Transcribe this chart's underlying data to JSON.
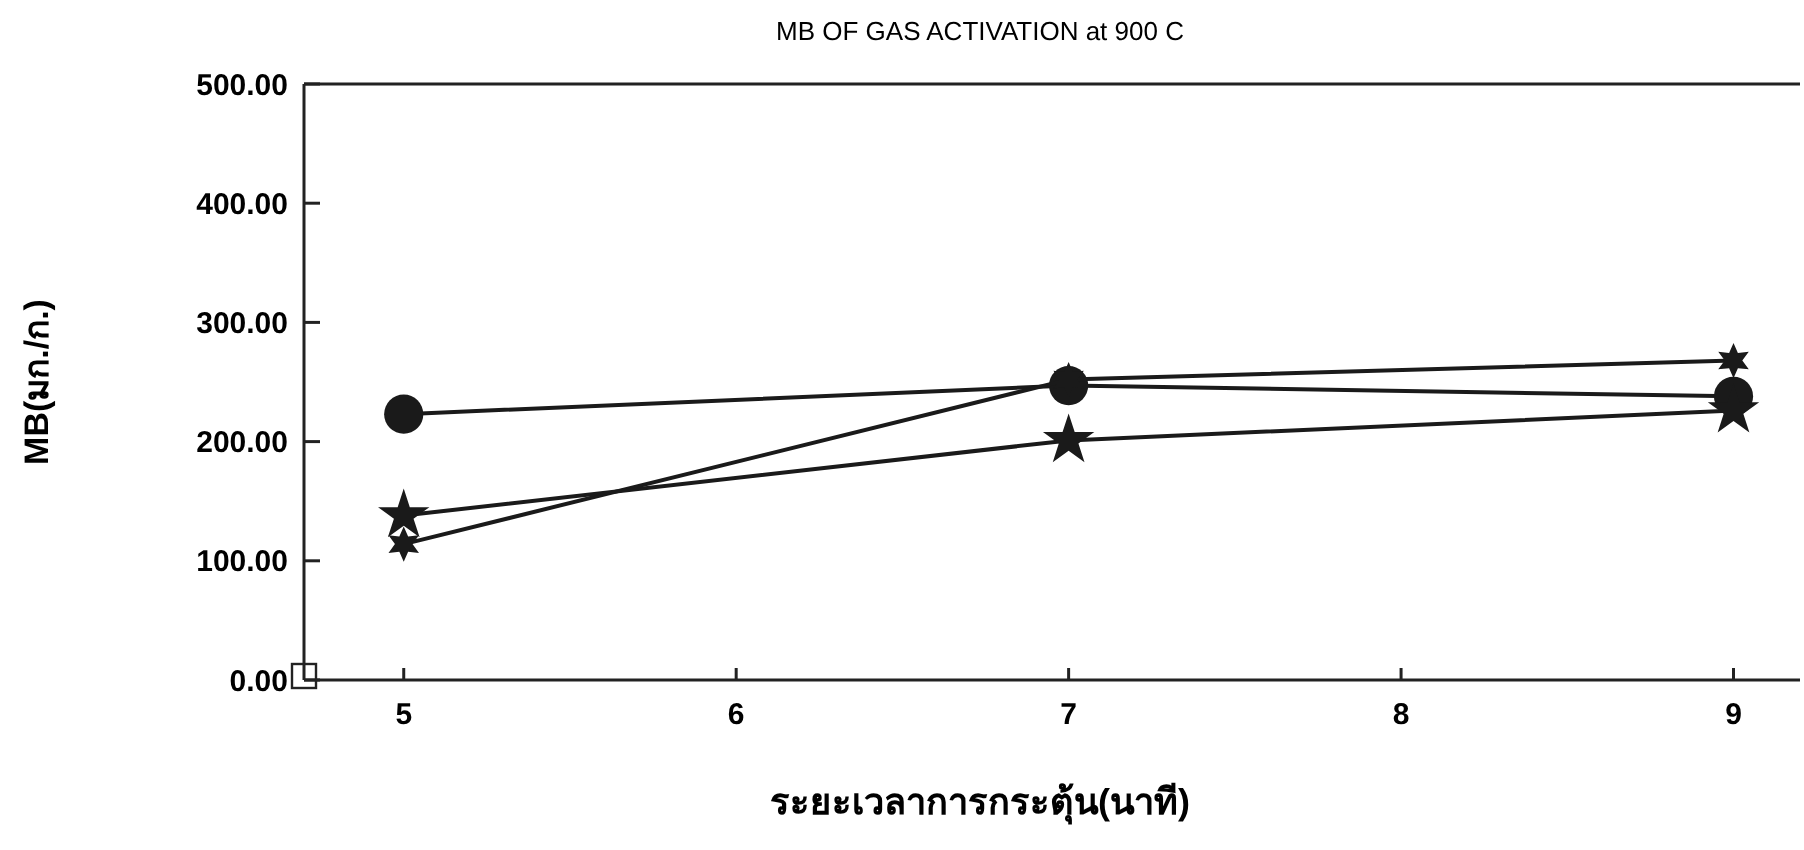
{
  "chart_data": {
    "type": "line",
    "title": "MB OF GAS ACTIVATION at 900 C",
    "xlabel": "ระยะเวลาการกระตุ้น(นาที)",
    "ylabel": "MB(มก./ก.)",
    "x": [
      5,
      7,
      9
    ],
    "series": [
      {
        "color": "#1a1a1a",
        "marker": "circle",
        "values": [
          223,
          247,
          238
        ]
      },
      {
        "color": "#1a1a1a",
        "marker": "cross",
        "values": [
          114,
          252,
          268
        ]
      },
      {
        "color": "#1a1a1a",
        "marker": "star",
        "values": [
          138,
          201,
          226
        ]
      }
    ],
    "xlim": [
      4.7,
      9.2
    ],
    "xticks": [
      5,
      6,
      7,
      8,
      9
    ],
    "ylim": [
      0,
      500
    ],
    "yticks": [
      {
        "value": 0,
        "label": "0.00"
      },
      {
        "value": 100,
        "label": "100.00"
      },
      {
        "value": 200,
        "label": "200.00"
      },
      {
        "value": 300,
        "label": "300.00"
      },
      {
        "value": 400,
        "label": "400.00"
      },
      {
        "value": 500,
        "label": "500.00"
      }
    ],
    "line_style": "solid"
  }
}
